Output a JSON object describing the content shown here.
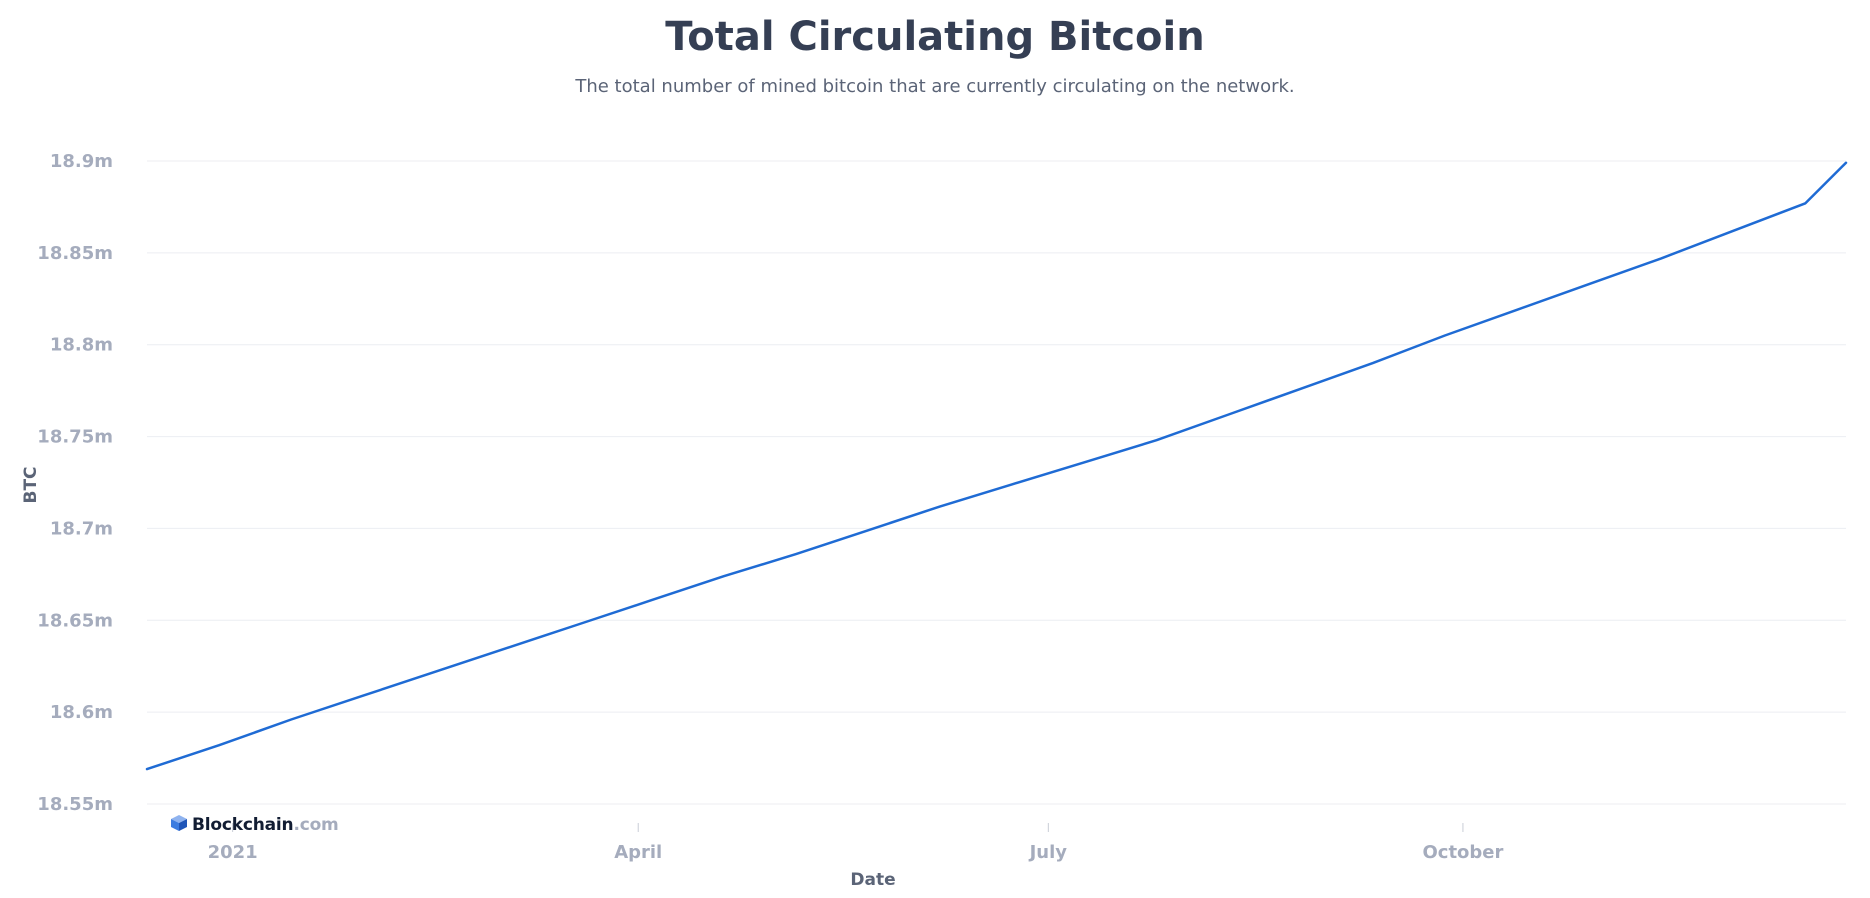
{
  "chart_data": {
    "type": "line",
    "title": "Total Circulating Bitcoin",
    "subtitle": "The total number of mined bitcoin that are currently circulating on the network.",
    "xlabel": "Date",
    "ylabel": "BTC",
    "ylim": [
      18550000,
      18900000
    ],
    "yticks": [
      {
        "value": 18550000,
        "label": "18.55m"
      },
      {
        "value": 18600000,
        "label": "18.6m"
      },
      {
        "value": 18650000,
        "label": "18.65m"
      },
      {
        "value": 18700000,
        "label": "18.7m"
      },
      {
        "value": 18750000,
        "label": "18.75m"
      },
      {
        "value": 18800000,
        "label": "18.8m"
      },
      {
        "value": 18850000,
        "label": "18.85m"
      },
      {
        "value": 18900000,
        "label": "18.9m"
      }
    ],
    "xlim": [
      "2020-12-13",
      "2021-12-25"
    ],
    "xticks": [
      {
        "value": "2021-01-01",
        "label": "2021"
      },
      {
        "value": "2021-04-01",
        "label": "April"
      },
      {
        "value": "2021-07-01",
        "label": "July"
      },
      {
        "value": "2021-10-01",
        "label": "October"
      }
    ],
    "grid": true,
    "legend": "none",
    "series": [
      {
        "color": "#1f6bd4",
        "x": [
          "2020-12-13",
          "2020-12-29",
          "2021-01-14",
          "2021-01-30",
          "2021-02-15",
          "2021-03-03",
          "2021-03-19",
          "2021-04-04",
          "2021-04-20",
          "2021-05-06",
          "2021-05-22",
          "2021-06-07",
          "2021-06-23",
          "2021-07-09",
          "2021-07-25",
          "2021-08-10",
          "2021-08-26",
          "2021-09-11",
          "2021-09-27",
          "2021-10-13",
          "2021-10-29",
          "2021-11-14",
          "2021-11-30",
          "2021-12-16",
          "2021-12-25"
        ],
        "values": [
          18569000,
          18582000,
          18596000,
          18609000,
          18622000,
          18635000,
          18648000,
          18661000,
          18674000,
          18686000,
          18699000,
          18712000,
          18724000,
          18736000,
          18748000,
          18762000,
          18776000,
          18790000,
          18805000,
          18819000,
          18833000,
          18847000,
          18862000,
          18877000,
          18899000
        ]
      }
    ]
  },
  "watermark": {
    "brand": "Blockchain",
    "domain": ".com"
  }
}
